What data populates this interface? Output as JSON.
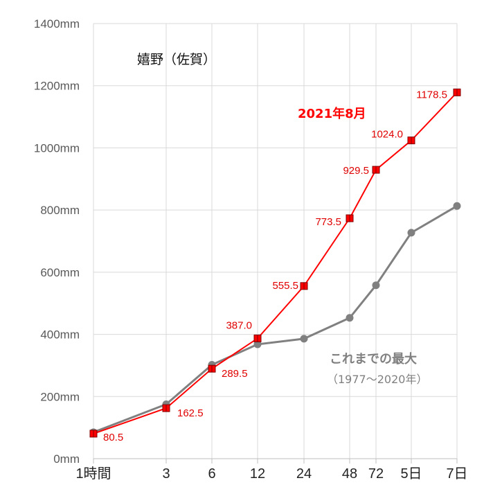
{
  "chart_data": {
    "type": "line",
    "title": "嬉野（佐賀）",
    "categories": [
      "1時間",
      "3",
      "6",
      "12",
      "24",
      "48",
      "72",
      "5日",
      "7日"
    ],
    "ylim": [
      0,
      1400
    ],
    "yticks": [
      "0mm",
      "200mm",
      "400mm",
      "600mm",
      "800mm",
      "1000mm",
      "1200mm",
      "1400mm"
    ],
    "grid": true,
    "series": [
      {
        "name": "2021年8月",
        "color": "#ff0000",
        "marker": "square",
        "values": [
          80.5,
          162.5,
          289.5,
          387.0,
          555.5,
          773.5,
          929.5,
          1024.0,
          1178.5
        ],
        "labels": [
          "80.5",
          "162.5",
          "289.5",
          "387.0",
          "555.5",
          "773.5",
          "929.5",
          "1024.0",
          "1178.5"
        ]
      },
      {
        "name": "これまでの最大",
        "subtitle": "（1977～2020年）",
        "color": "#808080",
        "marker": "circle",
        "values": [
          85,
          175,
          302,
          368,
          386,
          453,
          558,
          727,
          813
        ]
      }
    ]
  }
}
